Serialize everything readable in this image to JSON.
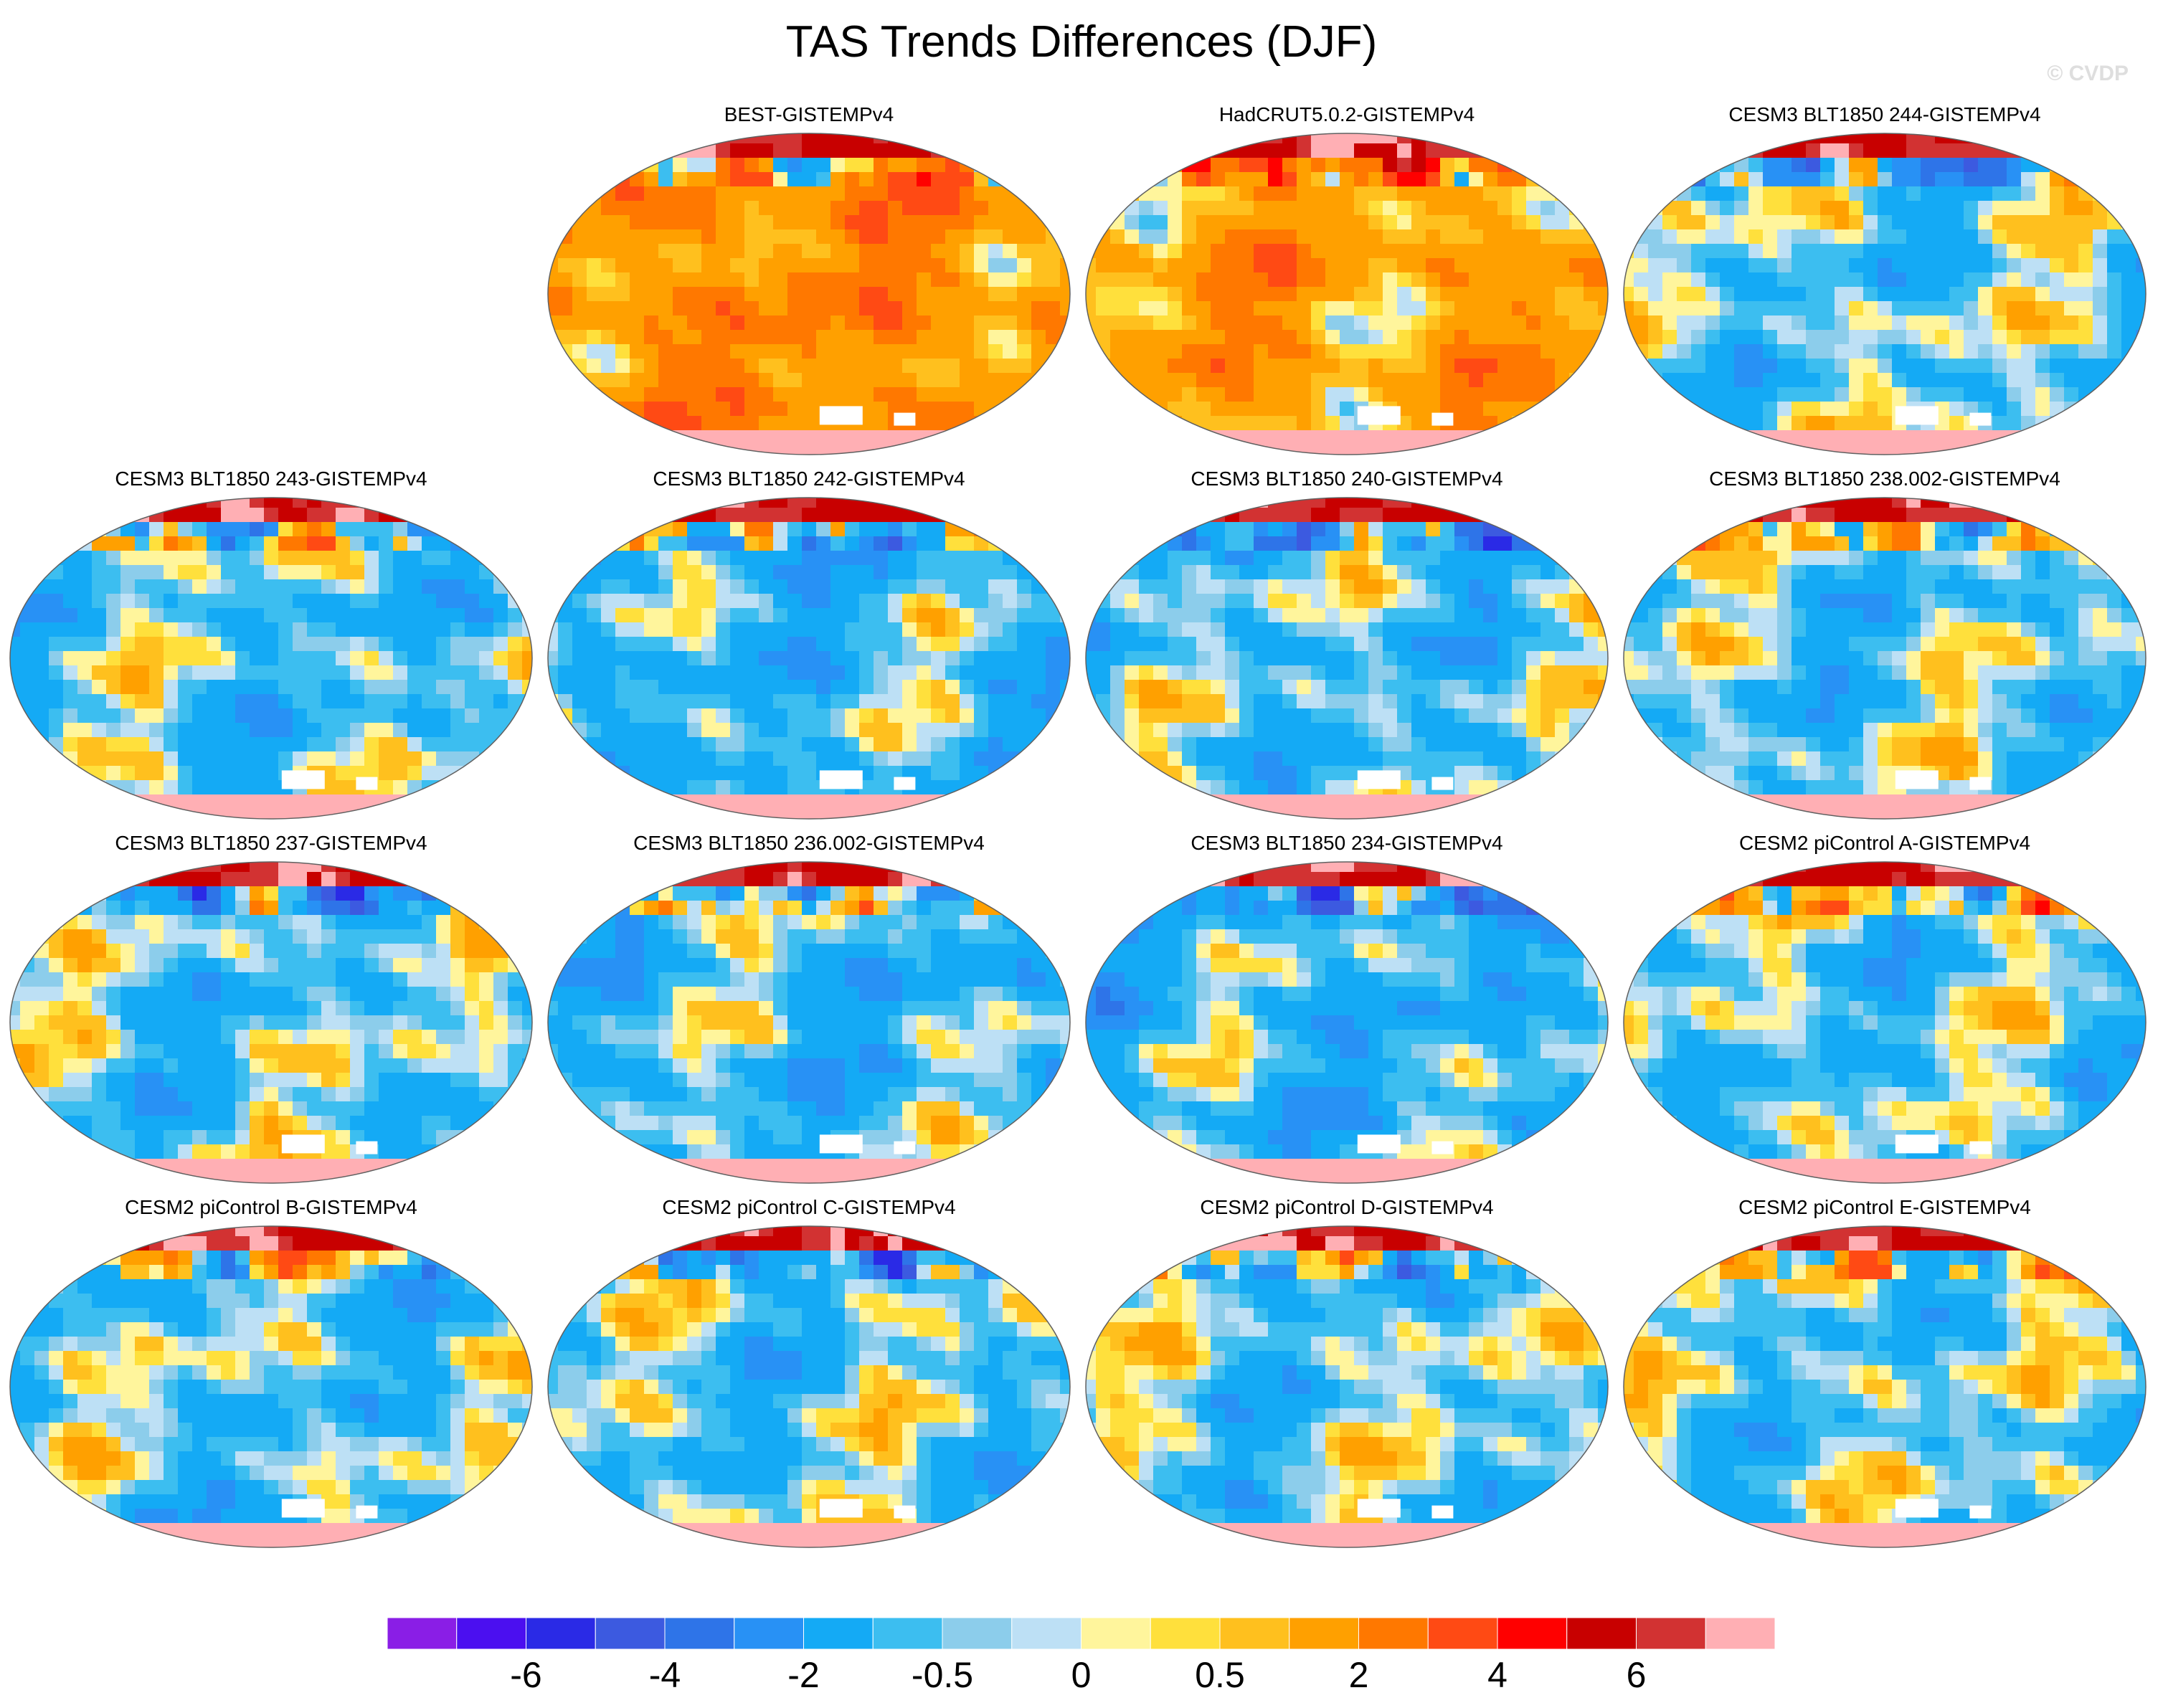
{
  "title": "TAS Trends Differences (DJF)",
  "watermark": "© CVDP",
  "chart_data": {
    "type": "heatmap",
    "projection": "Robinson (global map panels)",
    "season": "DJF",
    "panels": [
      {
        "title": "BEST-GISTEMPv4",
        "bias": 0.9,
        "seed": 3
      },
      {
        "title": "HadCRUT5.0.2-GISTEMPv4",
        "bias": 0.7,
        "seed": 7
      },
      {
        "title": "CESM3 BLT1850 244-GISTEMPv4",
        "bias": -0.25,
        "seed": 11
      },
      {
        "title": "CESM3 BLT1850 243-GISTEMPv4",
        "bias": -0.35,
        "seed": 13
      },
      {
        "title": "CESM3 BLT1850 242-GISTEMPv4",
        "bias": -0.45,
        "seed": 17
      },
      {
        "title": "CESM3 BLT1850 240-GISTEMPv4",
        "bias": -0.35,
        "seed": 19
      },
      {
        "title": "CESM3 BLT1850 238.002-GISTEMPv4",
        "bias": -0.3,
        "seed": 23
      },
      {
        "title": "CESM3 BLT1850 237-GISTEMPv4",
        "bias": -0.3,
        "seed": 29
      },
      {
        "title": "CESM3 BLT1850 236.002-GISTEMPv4",
        "bias": -0.45,
        "seed": 31
      },
      {
        "title": "CESM3 BLT1850 234-GISTEMPv4",
        "bias": -0.5,
        "seed": 37
      },
      {
        "title": "CESM2 piControl A-GISTEMPv4",
        "bias": -0.3,
        "seed": 41
      },
      {
        "title": "CESM2 piControl B-GISTEMPv4",
        "bias": -0.3,
        "seed": 43
      },
      {
        "title": "CESM2 piControl C-GISTEMPv4",
        "bias": -0.3,
        "seed": 47
      },
      {
        "title": "CESM2 piControl D-GISTEMPv4",
        "bias": -0.25,
        "seed": 53
      },
      {
        "title": "CESM2 piControl E-GISTEMPv4",
        "bias": -0.25,
        "seed": 59
      }
    ],
    "colorbar": {
      "colors": [
        "#8a1ee6",
        "#4b0ff0",
        "#2a2ae6",
        "#3c5ae0",
        "#2e74e8",
        "#2891f5",
        "#14aaf5",
        "#3cbef0",
        "#8ccdeb",
        "#bde0f5",
        "#fff59c",
        "#ffe03c",
        "#ffc01e",
        "#ffa000",
        "#ff7800",
        "#ff4a14",
        "#ff0000",
        "#c80000",
        "#d23232",
        "#ffafb4"
      ],
      "tick_labels": [
        "-6",
        "-4",
        "-2",
        "-0.5",
        "0",
        "0.5",
        "2",
        "4",
        "6"
      ],
      "tick_boundaries": [
        2,
        4,
        6,
        8,
        10,
        12,
        14,
        16,
        18
      ]
    }
  }
}
